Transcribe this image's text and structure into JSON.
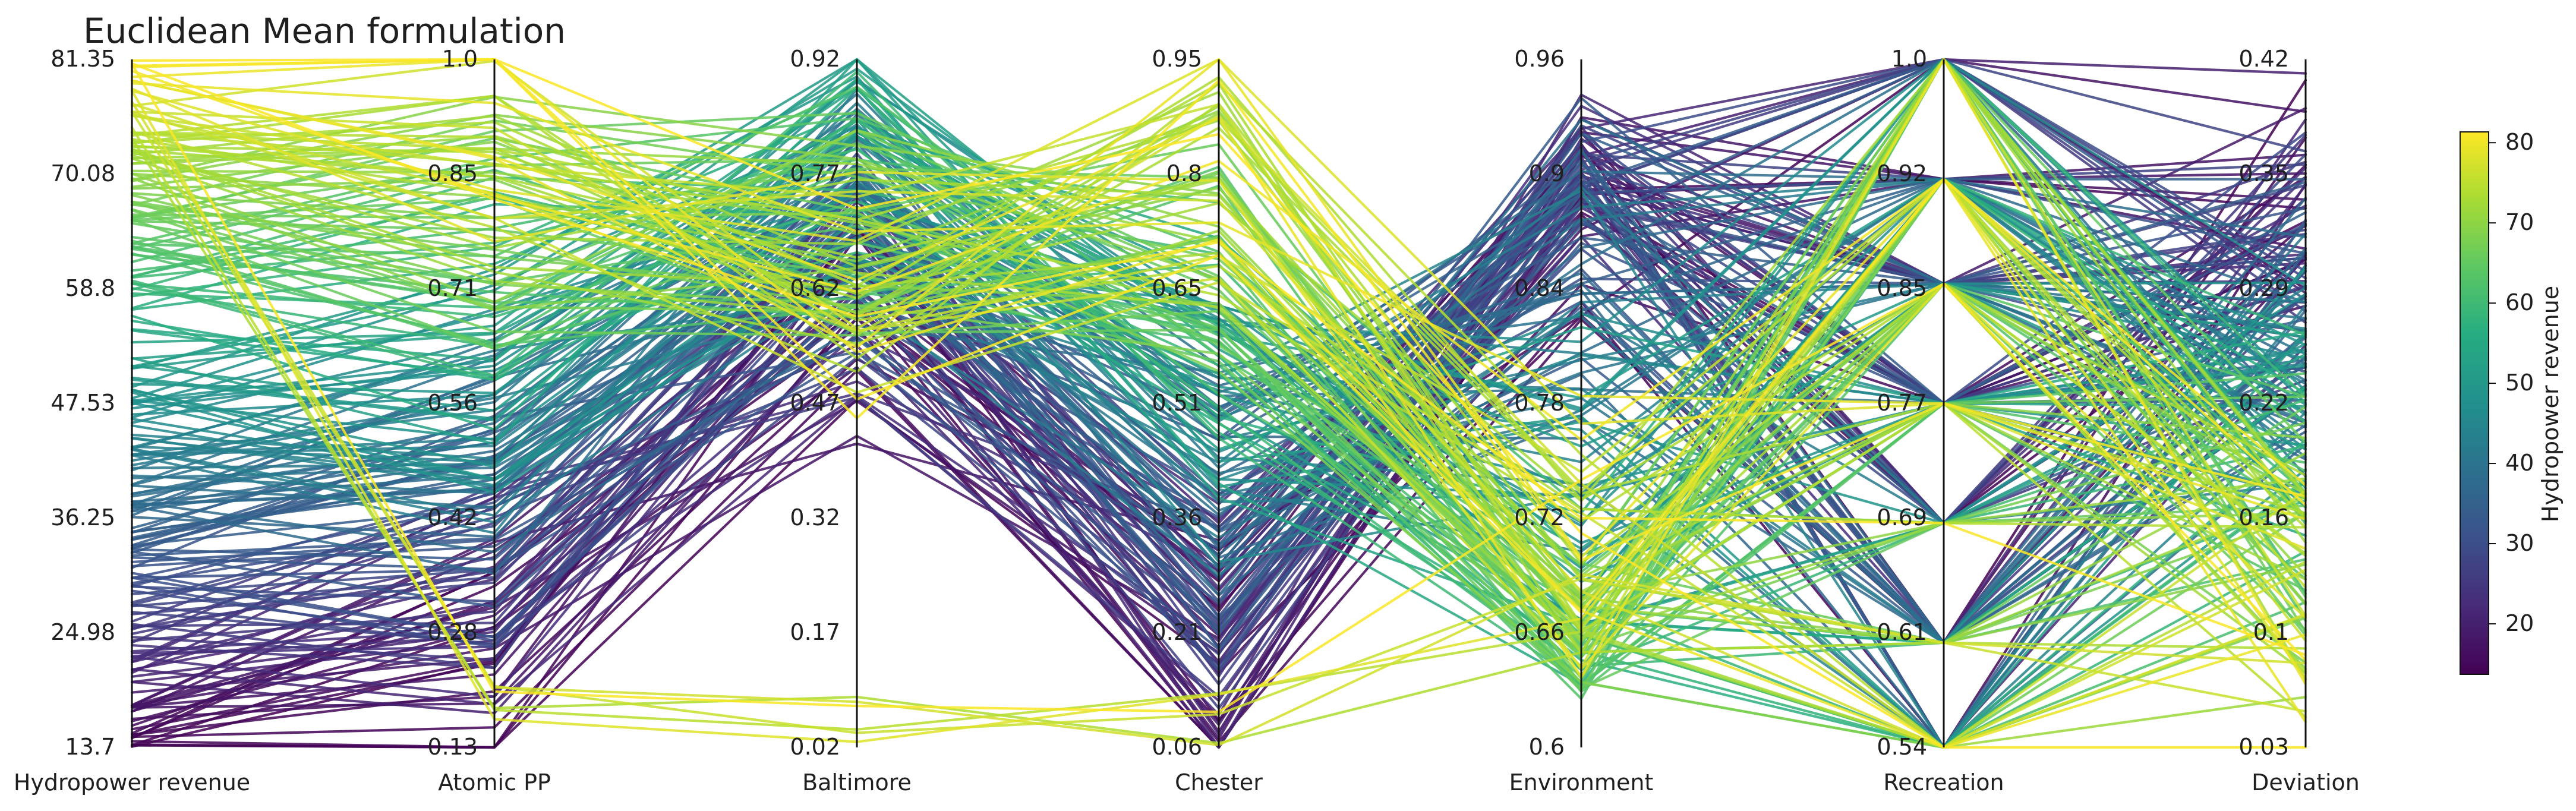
{
  "chart_data": {
    "type": "parallel-coordinates",
    "title": "Euclidean Mean formulation",
    "axes": [
      {
        "name": "Hydropower revenue",
        "ticks": [
          "81.35",
          "70.08",
          "58.8",
          "47.53",
          "36.25",
          "24.98",
          "13.7"
        ],
        "range": [
          13.7,
          81.35
        ]
      },
      {
        "name": "Atomic PP",
        "ticks": [
          "1.0",
          "0.85",
          "0.71",
          "0.56",
          "0.42",
          "0.28",
          "0.13"
        ],
        "range": [
          0.13,
          1.0
        ]
      },
      {
        "name": "Baltimore",
        "ticks": [
          "0.92",
          "0.77",
          "0.62",
          "0.47",
          "0.32",
          "0.17",
          "0.02"
        ],
        "range": [
          0.02,
          0.92
        ]
      },
      {
        "name": "Chester",
        "ticks": [
          "0.95",
          "0.8",
          "0.65",
          "0.51",
          "0.36",
          "0.21",
          "0.06"
        ],
        "range": [
          0.06,
          0.95
        ]
      },
      {
        "name": "Environment",
        "ticks": [
          "0.96",
          "0.9",
          "0.84",
          "0.78",
          "0.72",
          "0.66",
          "0.6"
        ],
        "range": [
          0.6,
          0.96
        ]
      },
      {
        "name": "Recreation",
        "ticks": [
          "1.0",
          "0.92",
          "0.85",
          "0.77",
          "0.69",
          "0.61",
          "0.54"
        ],
        "range": [
          0.54,
          1.0
        ]
      },
      {
        "name": "Deviation",
        "ticks": [
          "0.42",
          "0.35",
          "0.29",
          "0.22",
          "0.16",
          "0.1",
          "0.03"
        ],
        "range": [
          0.03,
          0.42
        ]
      }
    ],
    "color_by": "Hydropower revenue",
    "colormap": "viridis",
    "colorbar": {
      "label": "Hydropower revenue",
      "ticks": [
        "20",
        "30",
        "40",
        "50",
        "60",
        "70",
        "80"
      ],
      "range": [
        13.7,
        81.35
      ]
    },
    "series_count": 240
  }
}
